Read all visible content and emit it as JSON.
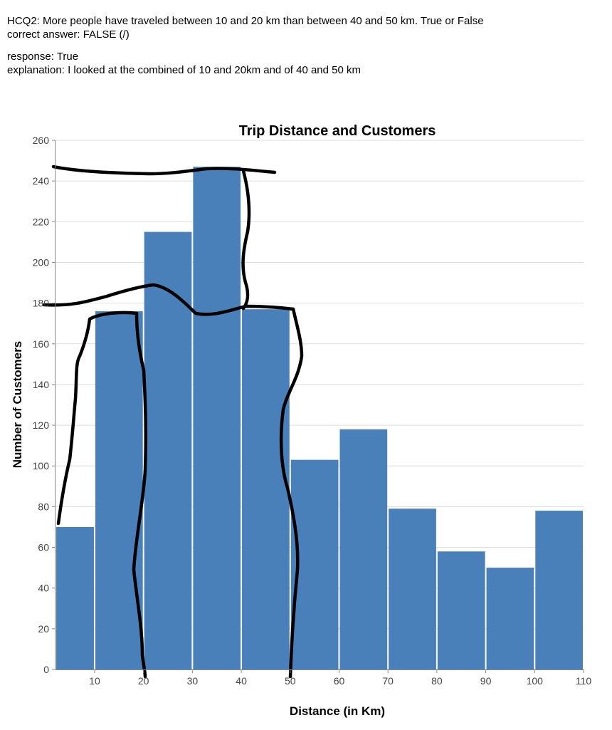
{
  "annotation": {
    "question": "HCQ2: More people have traveled between 10 and 20 km than between 40 and 50 km. True or False",
    "correct_answer": "correct answer: FALSE (/)",
    "response": "response: True",
    "explanation": "explanation: I looked at the combined of 10 and 20km and of 40 and 50 km"
  },
  "chart_data": {
    "type": "bar",
    "title": "Trip Distance and Customers",
    "xlabel": "Distance (in Km)",
    "ylabel": "Number of Customers",
    "bins": [
      {
        "x0": 2,
        "x1": 10,
        "value": 70
      },
      {
        "x0": 10,
        "x1": 20,
        "value": 176
      },
      {
        "x0": 20,
        "x1": 30,
        "value": 215
      },
      {
        "x0": 30,
        "x1": 40,
        "value": 247
      },
      {
        "x0": 40,
        "x1": 50,
        "value": 177
      },
      {
        "x0": 50,
        "x1": 60,
        "value": 103
      },
      {
        "x0": 60,
        "x1": 70,
        "value": 118
      },
      {
        "x0": 70,
        "x1": 80,
        "value": 79
      },
      {
        "x0": 80,
        "x1": 90,
        "value": 58
      },
      {
        "x0": 90,
        "x1": 100,
        "value": 50
      },
      {
        "x0": 100,
        "x1": 110,
        "value": 78
      }
    ],
    "xlim": [
      2,
      110
    ],
    "ylim": [
      0,
      260
    ],
    "xticks": [
      10,
      20,
      30,
      40,
      50,
      60,
      70,
      80,
      90,
      100,
      110
    ],
    "yticks": [
      0,
      20,
      40,
      60,
      80,
      100,
      120,
      140,
      160,
      180,
      200,
      220,
      240,
      260
    ],
    "grid": true,
    "bar_color": "#4a80b9",
    "annotation_color": "#000000"
  }
}
